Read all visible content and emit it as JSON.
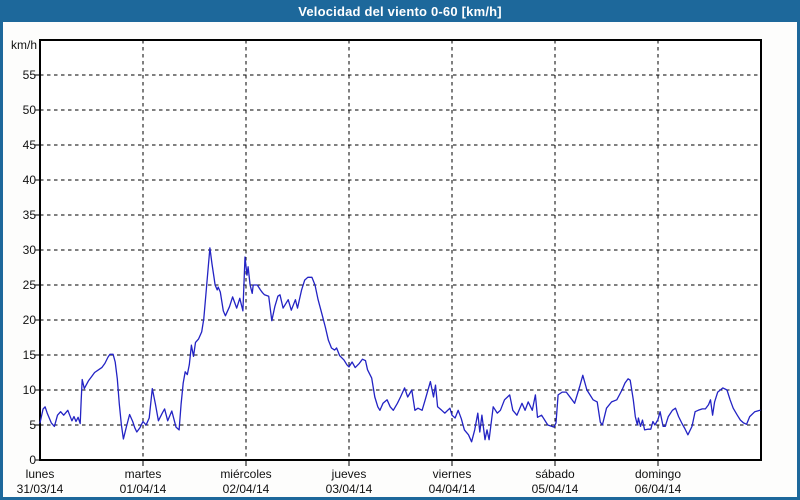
{
  "window": {
    "title": "Velocidad del viento 0-60 [km/h]"
  },
  "colors": {
    "titlebar_bg": "#1d689b",
    "window_border": "#1d689b",
    "page_bg": "#fdfdfc",
    "plot_bg": "#ffffff",
    "grid": "#000000",
    "line": "#2323c4",
    "title_text": "#ffffff",
    "label_text": "#111111"
  },
  "chart_data": {
    "type": "line",
    "title": "Velocidad del viento 0-60 [km/h]",
    "y_unit_label": "km/h",
    "ylim": [
      0,
      60
    ],
    "y_ticks": [
      0,
      5,
      10,
      15,
      20,
      25,
      30,
      35,
      40,
      45,
      50,
      55
    ],
    "grid": "dashed",
    "legend_position": "none",
    "x_days": [
      {
        "name": "lunes",
        "date": "31/03/14"
      },
      {
        "name": "martes",
        "date": "01/04/14"
      },
      {
        "name": "miércoles",
        "date": "02/04/14"
      },
      {
        "name": "jueves",
        "date": "03/04/14"
      },
      {
        "name": "viernes",
        "date": "04/04/14"
      },
      {
        "name": "sábado",
        "date": "05/04/14"
      },
      {
        "name": "domingo",
        "date": "06/04/14"
      }
    ],
    "series": [
      {
        "name": "velocidad del viento",
        "color": "#2323c4",
        "points": [
          [
            0.0,
            5.3
          ],
          [
            0.03,
            7.3
          ],
          [
            0.05,
            7.6
          ],
          [
            0.07,
            6.7
          ],
          [
            0.11,
            5.3
          ],
          [
            0.14,
            4.8
          ],
          [
            0.17,
            6.4
          ],
          [
            0.2,
            6.9
          ],
          [
            0.23,
            6.4
          ],
          [
            0.27,
            7.1
          ],
          [
            0.31,
            5.6
          ],
          [
            0.33,
            6.2
          ],
          [
            0.35,
            5.5
          ],
          [
            0.37,
            6.1
          ],
          [
            0.39,
            5.2
          ],
          [
            0.4,
            8.6
          ],
          [
            0.41,
            11.5
          ],
          [
            0.43,
            10.2
          ],
          [
            0.47,
            11.3
          ],
          [
            0.5,
            11.9
          ],
          [
            0.53,
            12.5
          ],
          [
            0.57,
            12.9
          ],
          [
            0.6,
            13.2
          ],
          [
            0.63,
            13.8
          ],
          [
            0.66,
            14.7
          ],
          [
            0.68,
            15.1
          ],
          [
            0.71,
            15.1
          ],
          [
            0.73,
            14.0
          ],
          [
            0.75,
            11.6
          ],
          [
            0.77,
            8.0
          ],
          [
            0.79,
            5.0
          ],
          [
            0.81,
            3.0
          ],
          [
            0.84,
            4.8
          ],
          [
            0.87,
            6.5
          ],
          [
            0.9,
            5.5
          ],
          [
            0.92,
            4.6
          ],
          [
            0.94,
            4.0
          ],
          [
            0.97,
            4.6
          ],
          [
            1.0,
            5.5
          ],
          [
            1.03,
            5.0
          ],
          [
            1.06,
            6.0
          ],
          [
            1.09,
            10.2
          ],
          [
            1.12,
            8.0
          ],
          [
            1.15,
            5.6
          ],
          [
            1.19,
            6.8
          ],
          [
            1.21,
            7.3
          ],
          [
            1.24,
            5.6
          ],
          [
            1.28,
            7.0
          ],
          [
            1.32,
            4.7
          ],
          [
            1.35,
            4.3
          ],
          [
            1.37,
            8.0
          ],
          [
            1.39,
            11.0
          ],
          [
            1.41,
            12.6
          ],
          [
            1.43,
            12.2
          ],
          [
            1.45,
            13.6
          ],
          [
            1.47,
            16.4
          ],
          [
            1.49,
            14.8
          ],
          [
            1.51,
            16.8
          ],
          [
            1.54,
            17.3
          ],
          [
            1.57,
            18.3
          ],
          [
            1.59,
            20.2
          ],
          [
            1.61,
            23.5
          ],
          [
            1.63,
            27.0
          ],
          [
            1.65,
            30.3
          ],
          [
            1.67,
            28.0
          ],
          [
            1.69,
            26.0
          ],
          [
            1.7,
            25.0
          ],
          [
            1.72,
            24.3
          ],
          [
            1.73,
            24.7
          ],
          [
            1.75,
            24.0
          ],
          [
            1.78,
            21.3
          ],
          [
            1.8,
            20.6
          ],
          [
            1.84,
            21.9
          ],
          [
            1.87,
            23.3
          ],
          [
            1.91,
            21.7
          ],
          [
            1.94,
            23.1
          ],
          [
            1.97,
            21.3
          ],
          [
            1.99,
            29.0
          ],
          [
            2.01,
            26.4
          ],
          [
            2.02,
            27.6
          ],
          [
            2.04,
            25.0
          ],
          [
            2.06,
            23.8
          ],
          [
            2.07,
            25.0
          ],
          [
            2.11,
            25.0
          ],
          [
            2.14,
            24.3
          ],
          [
            2.16,
            23.9
          ],
          [
            2.18,
            23.6
          ],
          [
            2.22,
            23.4
          ],
          [
            2.25,
            19.9
          ],
          [
            2.28,
            21.9
          ],
          [
            2.31,
            23.4
          ],
          [
            2.33,
            23.6
          ],
          [
            2.36,
            21.7
          ],
          [
            2.41,
            22.9
          ],
          [
            2.44,
            21.4
          ],
          [
            2.48,
            22.9
          ],
          [
            2.5,
            21.7
          ],
          [
            2.54,
            24.3
          ],
          [
            2.57,
            25.7
          ],
          [
            2.6,
            26.1
          ],
          [
            2.64,
            26.1
          ],
          [
            2.67,
            25.0
          ],
          [
            2.7,
            22.9
          ],
          [
            2.74,
            20.7
          ],
          [
            2.77,
            19.0
          ],
          [
            2.8,
            17.1
          ],
          [
            2.83,
            16.0
          ],
          [
            2.86,
            15.7
          ],
          [
            2.88,
            16.0
          ],
          [
            2.91,
            14.9
          ],
          [
            2.95,
            14.3
          ],
          [
            2.98,
            13.6
          ],
          [
            3.0,
            13.3
          ],
          [
            3.03,
            14.0
          ],
          [
            3.06,
            13.2
          ],
          [
            3.1,
            13.8
          ],
          [
            3.13,
            14.4
          ],
          [
            3.16,
            14.2
          ],
          [
            3.18,
            12.9
          ],
          [
            3.22,
            11.7
          ],
          [
            3.25,
            9.0
          ],
          [
            3.28,
            7.6
          ],
          [
            3.3,
            7.1
          ],
          [
            3.33,
            8.1
          ],
          [
            3.37,
            8.6
          ],
          [
            3.4,
            7.6
          ],
          [
            3.43,
            7.1
          ],
          [
            3.47,
            8.1
          ],
          [
            3.5,
            9.0
          ],
          [
            3.54,
            10.3
          ],
          [
            3.57,
            9.0
          ],
          [
            3.61,
            10.0
          ],
          [
            3.64,
            7.1
          ],
          [
            3.67,
            7.4
          ],
          [
            3.71,
            7.1
          ],
          [
            3.74,
            8.6
          ],
          [
            3.79,
            11.2
          ],
          [
            3.82,
            9.0
          ],
          [
            3.84,
            10.7
          ],
          [
            3.86,
            7.6
          ],
          [
            3.9,
            7.1
          ],
          [
            3.93,
            6.7
          ],
          [
            3.98,
            7.4
          ],
          [
            4.0,
            6.4
          ],
          [
            4.03,
            6.0
          ],
          [
            4.06,
            7.1
          ],
          [
            4.09,
            5.9
          ],
          [
            4.12,
            4.3
          ],
          [
            4.16,
            3.6
          ],
          [
            4.19,
            2.6
          ],
          [
            4.22,
            4.3
          ],
          [
            4.25,
            6.7
          ],
          [
            4.27,
            4.0
          ],
          [
            4.29,
            6.4
          ],
          [
            4.32,
            2.9
          ],
          [
            4.34,
            4.3
          ],
          [
            4.36,
            2.9
          ],
          [
            4.4,
            7.6
          ],
          [
            4.44,
            6.7
          ],
          [
            4.47,
            7.1
          ],
          [
            4.51,
            8.6
          ],
          [
            4.56,
            9.3
          ],
          [
            4.59,
            7.1
          ],
          [
            4.63,
            6.4
          ],
          [
            4.68,
            8.1
          ],
          [
            4.71,
            7.1
          ],
          [
            4.74,
            8.3
          ],
          [
            4.78,
            7.1
          ],
          [
            4.81,
            9.3
          ],
          [
            4.83,
            6.1
          ],
          [
            4.87,
            6.4
          ],
          [
            4.9,
            5.7
          ],
          [
            4.93,
            5.0
          ],
          [
            4.97,
            4.8
          ],
          [
            4.99,
            4.7
          ],
          [
            5.01,
            5.3
          ],
          [
            5.03,
            9.3
          ],
          [
            5.07,
            9.7
          ],
          [
            5.11,
            9.7
          ],
          [
            5.15,
            8.9
          ],
          [
            5.19,
            8.1
          ],
          [
            5.24,
            10.5
          ],
          [
            5.27,
            12.1
          ],
          [
            5.31,
            10.0
          ],
          [
            5.34,
            9.3
          ],
          [
            5.37,
            8.6
          ],
          [
            5.41,
            8.3
          ],
          [
            5.44,
            5.4
          ],
          [
            5.46,
            5.0
          ],
          [
            5.5,
            7.4
          ],
          [
            5.55,
            8.3
          ],
          [
            5.6,
            8.6
          ],
          [
            5.65,
            10.0
          ],
          [
            5.68,
            11.0
          ],
          [
            5.71,
            11.6
          ],
          [
            5.73,
            11.4
          ],
          [
            5.76,
            8.6
          ],
          [
            5.78,
            6.2
          ],
          [
            5.8,
            5.0
          ],
          [
            5.81,
            6.0
          ],
          [
            5.83,
            4.8
          ],
          [
            5.85,
            5.7
          ],
          [
            5.87,
            4.3
          ],
          [
            5.9,
            4.4
          ],
          [
            5.93,
            4.4
          ],
          [
            5.95,
            5.5
          ],
          [
            5.97,
            5.0
          ],
          [
            6.0,
            5.8
          ],
          [
            6.02,
            6.9
          ],
          [
            6.05,
            4.8
          ],
          [
            6.07,
            4.8
          ],
          [
            6.1,
            6.2
          ],
          [
            6.14,
            7.1
          ],
          [
            6.17,
            7.4
          ],
          [
            6.2,
            6.2
          ],
          [
            6.23,
            5.3
          ],
          [
            6.26,
            4.5
          ],
          [
            6.29,
            3.6
          ],
          [
            6.33,
            4.8
          ],
          [
            6.36,
            6.9
          ],
          [
            6.39,
            7.1
          ],
          [
            6.43,
            7.3
          ],
          [
            6.46,
            7.3
          ],
          [
            6.49,
            7.9
          ],
          [
            6.51,
            8.6
          ],
          [
            6.53,
            6.4
          ],
          [
            6.55,
            8.3
          ],
          [
            6.58,
            9.7
          ],
          [
            6.63,
            10.3
          ],
          [
            6.67,
            10.0
          ],
          [
            6.7,
            8.6
          ],
          [
            6.73,
            7.4
          ],
          [
            6.77,
            6.4
          ],
          [
            6.8,
            5.7
          ],
          [
            6.83,
            5.3
          ],
          [
            6.86,
            5.1
          ],
          [
            6.89,
            6.2
          ],
          [
            6.94,
            6.9
          ],
          [
            6.99,
            7.1
          ]
        ]
      }
    ]
  }
}
